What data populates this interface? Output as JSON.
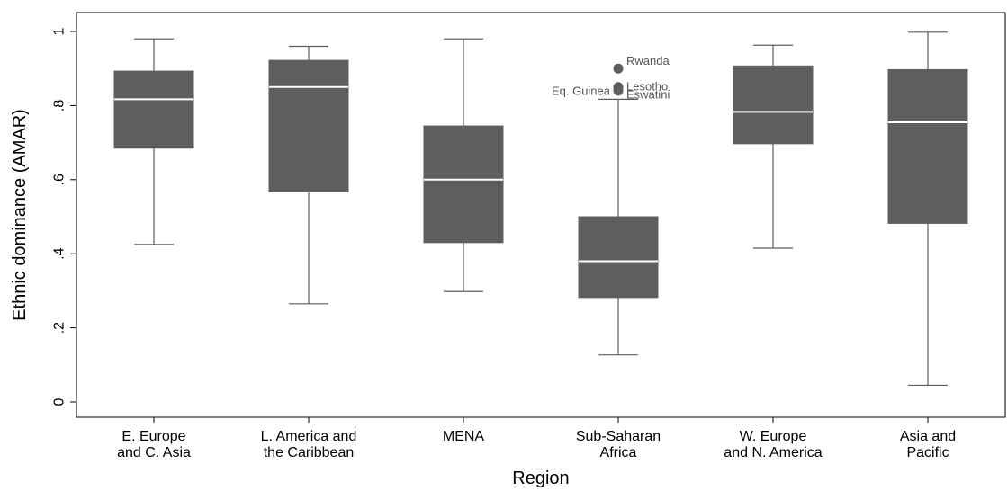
{
  "chart_data": {
    "type": "box",
    "xlabel": "Region",
    "ylabel": "Ethnic dominance (AMAR)",
    "ylim": [
      0,
      1
    ],
    "yticks": [
      0,
      0.2,
      0.4,
      0.6,
      0.8,
      1
    ],
    "ytick_labels": [
      "0",
      ".2",
      ".4",
      ".6",
      ".8",
      "1"
    ],
    "grid": false,
    "colors": {
      "box": "#5e5e5e",
      "median": "#ffffff",
      "whisker": "#5e5e5e",
      "axis": "#000000"
    },
    "categories": [
      {
        "label": [
          "E. Europe",
          "and C. Asia"
        ],
        "min": 0.425,
        "q1": 0.685,
        "median": 0.817,
        "q3": 0.893,
        "max": 0.98
      },
      {
        "label": [
          "L. America and",
          "the Caribbean"
        ],
        "min": 0.265,
        "q1": 0.567,
        "median": 0.85,
        "q3": 0.922,
        "max": 0.96
      },
      {
        "label": [
          "MENA"
        ],
        "min": 0.298,
        "q1": 0.43,
        "median": 0.6,
        "q3": 0.745,
        "max": 0.98
      },
      {
        "label": [
          "Sub-Saharan",
          "Africa"
        ],
        "min": 0.127,
        "q1": 0.282,
        "median": 0.38,
        "q3": 0.5,
        "max": 0.817,
        "outliers": [
          {
            "name": "Rwanda",
            "value": 0.9
          },
          {
            "name": "Lesotho",
            "value": 0.85
          },
          {
            "name": "Eq. Guinea",
            "value": 0.845
          },
          {
            "name": "Eswatini",
            "value": 0.84
          }
        ]
      },
      {
        "label": [
          "W. Europe",
          "and N. America"
        ],
        "min": 0.415,
        "q1": 0.697,
        "median": 0.783,
        "q3": 0.907,
        "max": 0.963
      },
      {
        "label": [
          "Asia and",
          "Pacific"
        ],
        "min": 0.045,
        "q1": 0.482,
        "median": 0.755,
        "q3": 0.897,
        "max": 0.998
      }
    ]
  }
}
